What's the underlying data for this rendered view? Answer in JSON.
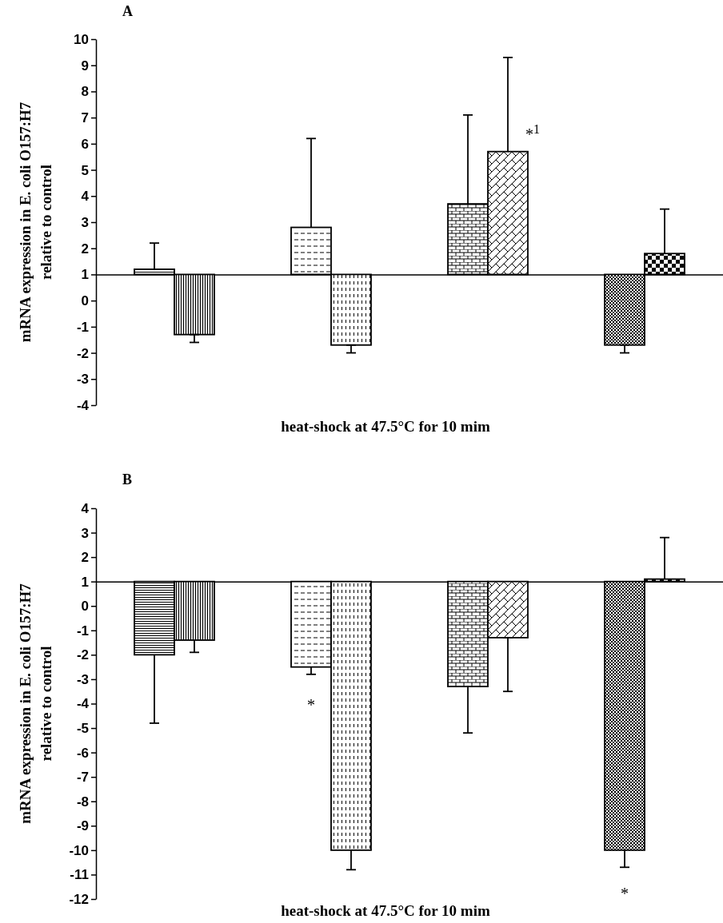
{
  "chart_data": [
    {
      "type": "bar",
      "title": "A",
      "xlabel": "heat-shock at 47.5°C for 10 mim",
      "ylabel": "mRNA expression in E. coli O157:H7 relative to control",
      "categories": [
        null,
        null,
        null,
        null
      ],
      "ylim": [
        -4,
        10
      ],
      "yticks": [
        -4,
        -3,
        -2,
        -1,
        0,
        1,
        2,
        3,
        4,
        5,
        6,
        7,
        8,
        9,
        10
      ],
      "series": [
        {
          "color": "#000000",
          "base": [
            1,
            1,
            1,
            1
          ],
          "values": [
            0.2,
            1.8,
            2.7,
            -2.7
          ],
          "errors": [
            [
              1.2,
              2.2
            ],
            [
              2.8,
              6.2
            ],
            [
              3.7,
              7.1
            ],
            [
              -2.0,
              -1.7
            ]
          ]
        },
        {
          "color": "#000000",
          "base": [
            1,
            1,
            1,
            1
          ],
          "values": [
            -2.3,
            -2.7,
            4.7,
            0.8
          ],
          "errors": [
            [
              -1.6,
              -1.3
            ],
            [
              -2.0,
              -1.7
            ],
            [
              5.7,
              9.3
            ],
            [
              1.8,
              3.5
            ]
          ]
        }
      ],
      "annotations": [
        "*$^{1}$"
      ]
    },
    {
      "type": "bar",
      "title": "B",
      "xlabel": "heat-shock at 47.5°C for 10 mim",
      "ylabel": "mRNA expression in E. coli O157:H7 relative to control",
      "categories": [
        null,
        null,
        null,
        null
      ],
      "ylim": [
        -12,
        4
      ],
      "yticks": [
        -12,
        -11,
        -10,
        -9,
        -8,
        -7,
        -6,
        -5,
        -4,
        -3,
        -2,
        -1,
        0,
        1,
        2,
        3,
        4
      ],
      "series": [
        {
          "color": "#000000",
          "base": [
            1,
            1,
            1,
            1
          ],
          "values": [
            -3.0,
            -3.5,
            -4.3,
            -11.0
          ],
          "errors": [
            [
              -4.8,
              -2.0
            ],
            [
              -2.8,
              -2.5
            ],
            [
              -5.2,
              -3.3
            ],
            [
              -10.7,
              -10.0
            ]
          ]
        },
        {
          "color": "#000000",
          "base": [
            1,
            1,
            1,
            1
          ],
          "values": [
            -2.4,
            -11.0,
            -2.3,
            0.1
          ],
          "errors": [
            [
              -1.9,
              -1.4
            ],
            [
              -10.8,
              -10.0
            ],
            [
              -3.5,
              -1.3
            ],
            [
              1.1,
              2.8
            ]
          ]
        }
      ],
      "annotations": [
        "*",
        "*"
      ]
    }
  ]
}
